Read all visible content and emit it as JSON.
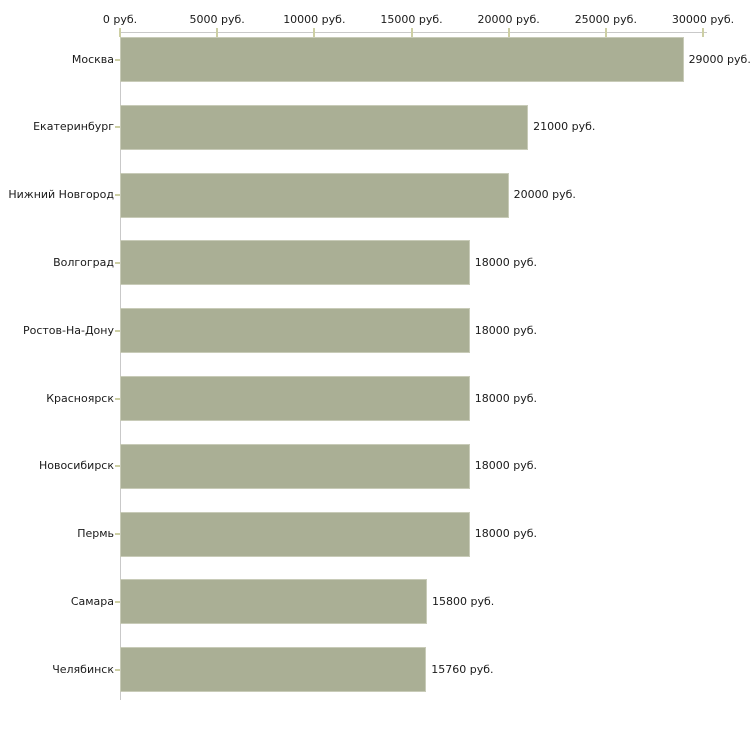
{
  "chart_data": {
    "type": "bar",
    "orientation": "horizontal",
    "title": "",
    "xlabel": "",
    "ylabel": "",
    "legend": "none",
    "grid": false,
    "xlim": [
      0,
      30000
    ],
    "categories": [
      "Москва",
      "Екатеринбург",
      "Нижний Новгород",
      "Волгоград",
      "Ростов-На-Дону",
      "Красноярск",
      "Новосибирск",
      "Пермь",
      "Самара",
      "Челябинск"
    ],
    "values": [
      29000,
      21000,
      20000,
      18000,
      18000,
      18000,
      18000,
      18000,
      15800,
      15760
    ],
    "value_labels": [
      "29000 руб.",
      "21000 руб.",
      "20000 руб.",
      "18000 руб.",
      "18000 руб.",
      "18000 руб.",
      "18000 руб.",
      "18000 руб.",
      "15800 руб.",
      "15760 руб."
    ],
    "x_ticks": [
      {
        "value": 0,
        "label": "0 руб."
      },
      {
        "value": 5000,
        "label": "5000 руб."
      },
      {
        "value": 10000,
        "label": "10000 руб."
      },
      {
        "value": 15000,
        "label": "15000 руб."
      },
      {
        "value": 20000,
        "label": "20000 руб."
      },
      {
        "value": 25000,
        "label": "25000 руб."
      },
      {
        "value": 30000,
        "label": "30000 руб."
      }
    ]
  },
  "colors": {
    "background": "#ffffff",
    "bar_fill": "#aaaf95",
    "bar_border": "#c8cbb8",
    "axis_line": "#c9c9c9",
    "tick_mark": "#cdcfa4",
    "text": "#1a1a1a"
  }
}
